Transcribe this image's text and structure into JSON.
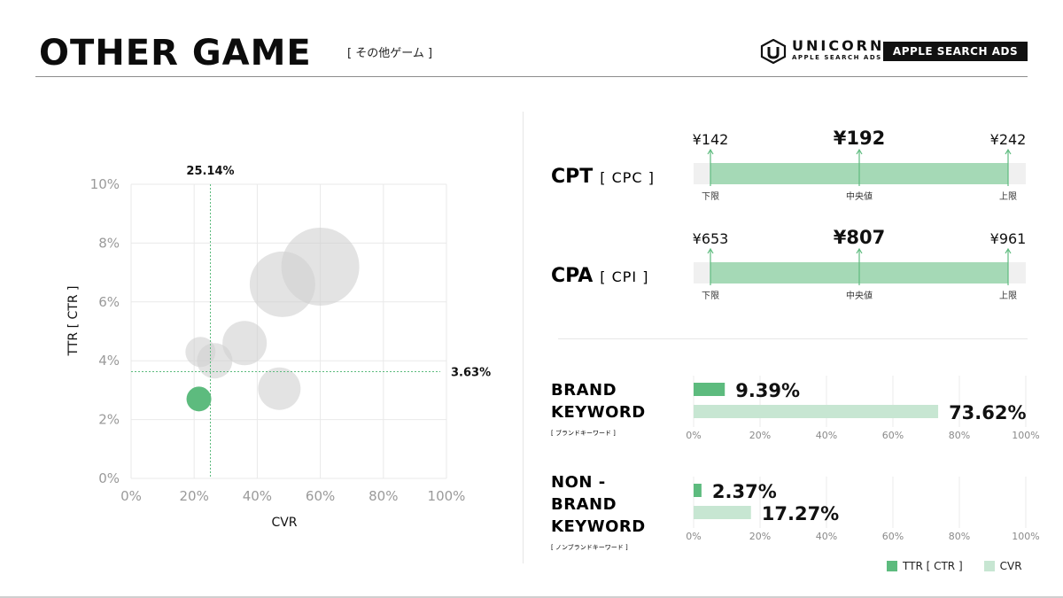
{
  "header": {
    "title": "OTHER GAME",
    "subtitle": "[ その他ゲーム ]",
    "brand": {
      "name": "UNICORN",
      "tagline": "APPLE SEARCH ADS",
      "badge": "APPLE SEARCH ADS"
    }
  },
  "colors": {
    "accent": "#5dbb7e",
    "accent_light": "#c7e6d2",
    "range_bar": "#a5d9b6",
    "bubble_gray": "#d0d0d0",
    "track": "#f0f0f0"
  },
  "chart_data": [
    {
      "type": "scatter",
      "xlabel": "CVR",
      "ylabel": "TTR [ CTR ]",
      "xlim": [
        0,
        100
      ],
      "ylim": [
        0,
        10
      ],
      "x_ticks": [
        "0%",
        "20%",
        "40%",
        "60%",
        "80%",
        "100%"
      ],
      "y_ticks": [
        "0%",
        "2%",
        "4%",
        "6%",
        "8%",
        "10%"
      ],
      "grid": true,
      "reference_lines": {
        "x": 25.14,
        "y": 3.63,
        "x_label": "25.14%",
        "y_label": "3.63%"
      },
      "points": [
        {
          "x": 60,
          "y": 7.2,
          "size": 44,
          "highlight": false
        },
        {
          "x": 48,
          "y": 6.6,
          "size": 37,
          "highlight": false
        },
        {
          "x": 36,
          "y": 4.6,
          "size": 25,
          "highlight": false
        },
        {
          "x": 26.5,
          "y": 4.0,
          "size": 20,
          "highlight": false
        },
        {
          "x": 22,
          "y": 4.3,
          "size": 17,
          "highlight": false
        },
        {
          "x": 47,
          "y": 3.05,
          "size": 24,
          "highlight": false
        },
        {
          "x": 21.5,
          "y": 2.7,
          "size": 14,
          "highlight": true
        }
      ]
    },
    {
      "type": "bar",
      "title": "CPT",
      "subtitle": "[ CPC ]",
      "min": 142,
      "median": 192,
      "max": 242,
      "min_text": "¥142",
      "median_text": "¥192",
      "max_text": "¥242",
      "min_label": "下限",
      "median_label": "中央値",
      "max_label": "上限"
    },
    {
      "type": "bar",
      "title": "CPA",
      "subtitle": "[ CPI ]",
      "min": 653,
      "median": 807,
      "max": 961,
      "min_text": "¥653",
      "median_text": "¥807",
      "max_text": "¥961",
      "min_label": "下限",
      "median_label": "中央値",
      "max_label": "上限"
    },
    {
      "type": "bar",
      "title_lines": [
        "BRAND",
        "KEYWORD"
      ],
      "note": "[ ブランドキーワード ]",
      "x_ticks": [
        "0%",
        "20%",
        "40%",
        "60%",
        "80%",
        "100%"
      ],
      "xlim": [
        0,
        100
      ],
      "series": [
        {
          "name": "TTR [ CTR ]",
          "value": 9.39,
          "label": "9.39%"
        },
        {
          "name": "CVR",
          "value": 73.62,
          "label": "73.62%"
        }
      ]
    },
    {
      "type": "bar",
      "title_lines": [
        "NON -",
        "BRAND",
        "KEYWORD"
      ],
      "note": "[ ノンブランドキーワード ]",
      "x_ticks": [
        "0%",
        "20%",
        "40%",
        "60%",
        "80%",
        "100%"
      ],
      "xlim": [
        0,
        100
      ],
      "series": [
        {
          "name": "TTR [ CTR ]",
          "value": 2.37,
          "label": "2.37%"
        },
        {
          "name": "CVR",
          "value": 17.27,
          "label": "17.27%"
        }
      ]
    }
  ],
  "legend": [
    {
      "label": "TTR [ CTR ]"
    },
    {
      "label": "CVR"
    }
  ]
}
